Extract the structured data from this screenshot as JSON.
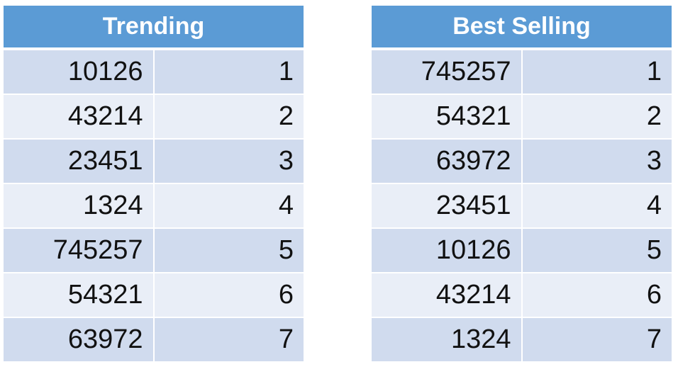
{
  "tables": [
    {
      "title": "Trending",
      "rows": [
        [
          "10126",
          "1"
        ],
        [
          "43214",
          "2"
        ],
        [
          "23451",
          "3"
        ],
        [
          "1324",
          "4"
        ],
        [
          "745257",
          "5"
        ],
        [
          "54321",
          "6"
        ],
        [
          "63972",
          "7"
        ]
      ]
    },
    {
      "title": "Best Selling",
      "rows": [
        [
          "745257",
          "1"
        ],
        [
          "54321",
          "2"
        ],
        [
          "63972",
          "3"
        ],
        [
          "23451",
          "4"
        ],
        [
          "10126",
          "5"
        ],
        [
          "43214",
          "6"
        ],
        [
          "1324",
          "7"
        ]
      ]
    }
  ],
  "colors": {
    "header": "#5b9bd5",
    "row_dark": "#d0dbee",
    "row_light": "#e9eef7"
  }
}
